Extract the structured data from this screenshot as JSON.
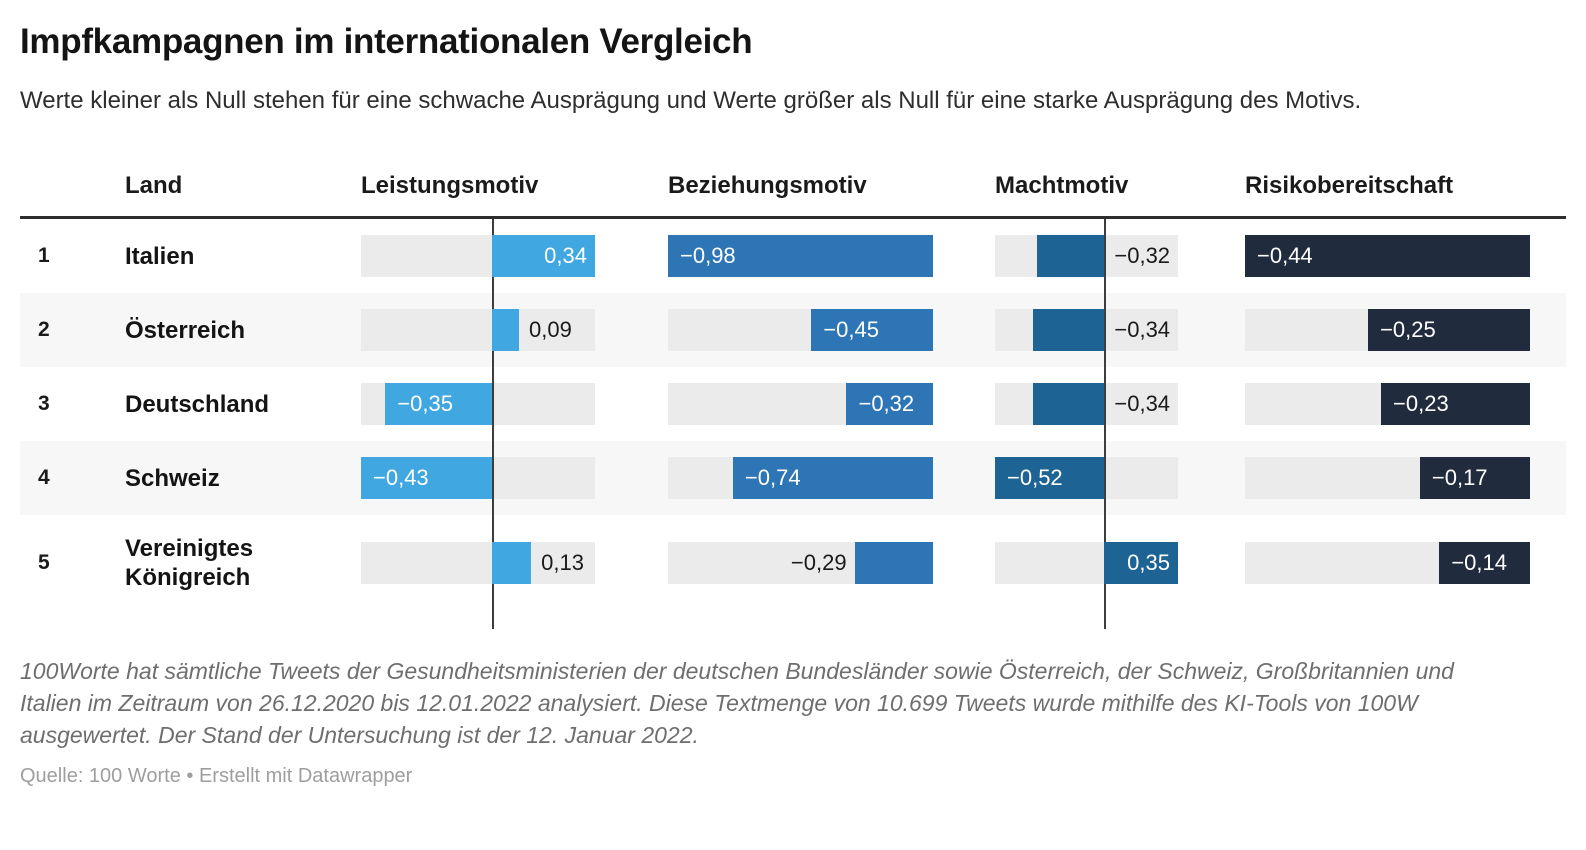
{
  "title": "Impfkampagnen im internationalen Vergleich",
  "subtitle": "Werte kleiner als Null stehen für eine schwache Ausprägung und Werte größer als Null für eine starke Ausprägung des Motivs.",
  "table": {
    "land_header": "Land",
    "columns": [
      {
        "key": "leistung",
        "header": "Leistungsmotiv",
        "min": -0.43,
        "max": 0.34,
        "color": "#40a7e0"
      },
      {
        "key": "beziehung",
        "header": "Beziehungsmotiv",
        "min": -0.98,
        "max": 0,
        "color": "#2e75b5"
      },
      {
        "key": "macht",
        "header": "Machtmotiv",
        "min": -0.52,
        "max": 0.35,
        "color": "#1d6494"
      },
      {
        "key": "risiko",
        "header": "Risikobereitschaft",
        "min": -0.44,
        "max": 0,
        "color": "#212b3e"
      }
    ],
    "rows": [
      {
        "rank": "1",
        "land": "Italien",
        "cells": [
          {
            "col": "leistung",
            "value": 0.34,
            "label": "0,34",
            "placement": "inside"
          },
          {
            "col": "beziehung",
            "value": -0.98,
            "label": "−0,98",
            "placement": "inside"
          },
          {
            "col": "macht",
            "value": -0.32,
            "label": "−0,32",
            "placement": "outside"
          },
          {
            "col": "risiko",
            "value": -0.44,
            "label": "−0,44",
            "placement": "inside"
          }
        ]
      },
      {
        "rank": "2",
        "land": "Österreich",
        "cells": [
          {
            "col": "leistung",
            "value": 0.09,
            "label": "0,09",
            "placement": "outside"
          },
          {
            "col": "beziehung",
            "value": -0.45,
            "label": "−0,45",
            "placement": "inside"
          },
          {
            "col": "macht",
            "value": -0.34,
            "label": "−0,34",
            "placement": "outside"
          },
          {
            "col": "risiko",
            "value": -0.25,
            "label": "−0,25",
            "placement": "inside"
          }
        ]
      },
      {
        "rank": "3",
        "land": "Deutschland",
        "cells": [
          {
            "col": "leistung",
            "value": -0.35,
            "label": "−0,35",
            "placement": "inside"
          },
          {
            "col": "beziehung",
            "value": -0.32,
            "label": "−0,32",
            "placement": "inside"
          },
          {
            "col": "macht",
            "value": -0.34,
            "label": "−0,34",
            "placement": "outside"
          },
          {
            "col": "risiko",
            "value": -0.23,
            "label": "−0,23",
            "placement": "inside"
          }
        ]
      },
      {
        "rank": "4",
        "land": "Schweiz",
        "cells": [
          {
            "col": "leistung",
            "value": -0.43,
            "label": "−0,43",
            "placement": "inside"
          },
          {
            "col": "beziehung",
            "value": -0.74,
            "label": "−0,74",
            "placement": "inside"
          },
          {
            "col": "macht",
            "value": -0.52,
            "label": "−0,52",
            "placement": "inside"
          },
          {
            "col": "risiko",
            "value": -0.17,
            "label": "−0,17",
            "placement": "inside"
          }
        ]
      },
      {
        "rank": "5",
        "land": "Vereinigtes Königreich",
        "cells": [
          {
            "col": "leistung",
            "value": 0.13,
            "label": "0,13",
            "placement": "outside"
          },
          {
            "col": "beziehung",
            "value": -0.29,
            "label": "−0,29",
            "placement": "outside"
          },
          {
            "col": "macht",
            "value": 0.35,
            "label": "0,35",
            "placement": "inside"
          },
          {
            "col": "risiko",
            "value": -0.14,
            "label": "−0,14",
            "placement": "inside"
          }
        ]
      }
    ]
  },
  "chart_data": {
    "type": "table",
    "title": "Impfkampagnen im internationalen Vergleich",
    "subtitle": "Werte kleiner als Null stehen für eine schwache Ausprägung und Werte größer als Null für eine starke Ausprägung des Motivs.",
    "categories": [
      "Italien",
      "Österreich",
      "Deutschland",
      "Schweiz",
      "Vereinigtes Königreich"
    ],
    "series": [
      {
        "name": "Leistungsmotiv",
        "values": [
          0.34,
          0.09,
          -0.35,
          -0.43,
          0.13
        ]
      },
      {
        "name": "Beziehungsmotiv",
        "values": [
          -0.98,
          -0.45,
          -0.32,
          -0.74,
          -0.29
        ]
      },
      {
        "name": "Machtmotiv",
        "values": [
          -0.32,
          -0.34,
          -0.34,
          -0.52,
          0.35
        ]
      },
      {
        "name": "Risikobereitschaft",
        "values": [
          -0.44,
          -0.25,
          -0.23,
          -0.17,
          -0.14
        ]
      }
    ],
    "layout": {
      "bar_direction": "horizontal",
      "zero_axis_columns": [
        "Leistungsmotiv",
        "Machtmotiv"
      ],
      "row_striping": true
    }
  },
  "colors": {
    "leistungsmotiv": "#40a7e0",
    "beziehungsmotiv": "#2e75b5",
    "machtmotiv": "#1d6494",
    "risikobereitschaft": "#212b3e",
    "track": "#ebebeb",
    "stripe": "#f7f7f7",
    "zero_line": "#3d3d3d"
  },
  "notes": "100Worte hat sämtliche Tweets der Gesundheitsministerien der deutschen Bundesländer sowie Österreich, der Schweiz, Großbritannien und Italien im Zeitraum von 26.12.2020 bis 12.01.2022 analysiert. Diese Textmenge von 10.699 Tweets wurde mithilfe des KI-Tools von 100W ausgewertet. Der Stand der Untersuchung ist der 12. Januar 2022.",
  "source": "Quelle: 100 Worte • Erstellt mit Datawrapper"
}
